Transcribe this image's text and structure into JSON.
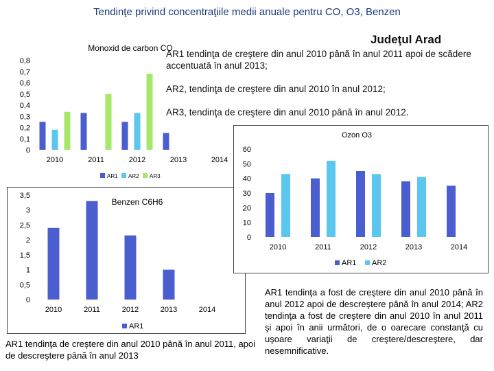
{
  "page": {
    "title": "Tendinţe privind concentraţiile medii anuale pentru CO, O3, Benzen",
    "region": "Judeţul Arad",
    "co_notes": [
      "AR1 tendinţa de creştere din anul 2010 până în anul 2011 apoi de scădere accentuată în anul 2013;",
      "AR2, tendinţa de creştere din anul 2010 în anul 2012;",
      "AR3, tendinţa de creştere din anul 2010 până în anul 2012."
    ],
    "benzen_note": "AR1 tendinţa de creştere din anul 2010 până în anul 2011, apoi de descreştere până în anul 2013",
    "ozon_note": "AR1 tendinţa a fost de creştere din anul 2010 până în anul 2012 apoi de descreştere până în anul 2014; AR2 tendinţa a fost de creştere din anul 2010 în anul 2011 şi apoi în anii următori, de o oarecare constanţă cu uşoare variaţii de creştere/descreştere, dar nesemnificative."
  },
  "colors": {
    "AR1": "#4a5ed0",
    "AR2": "#5bc6ee",
    "AR3": "#a6e86a"
  },
  "chart_data": [
    {
      "id": "co",
      "type": "bar",
      "title": "Monoxid de carbon CO",
      "categories": [
        "2010",
        "2011",
        "2012",
        "2013",
        "2014"
      ],
      "series": [
        {
          "name": "AR1",
          "values": [
            0.25,
            0.33,
            0.25,
            0.15,
            null
          ]
        },
        {
          "name": "AR2",
          "values": [
            0.18,
            null,
            0.33,
            null,
            null
          ]
        },
        {
          "name": "AR3",
          "values": [
            0.34,
            0.5,
            0.68,
            null,
            null
          ]
        }
      ],
      "ylim": [
        0,
        0.8
      ],
      "yticks": [
        "0",
        "0,1",
        "0,2",
        "0,3",
        "0,4",
        "0,5",
        "0,6",
        "0,7",
        "0,8"
      ],
      "legend": [
        "AR1",
        "AR2",
        "AR3"
      ]
    },
    {
      "id": "benzen",
      "type": "bar",
      "title": "Benzen C6H6",
      "categories": [
        "2010",
        "2011",
        "2012",
        "2013",
        "2014"
      ],
      "series": [
        {
          "name": "AR1",
          "values": [
            2.4,
            3.3,
            2.15,
            1.0,
            null
          ]
        }
      ],
      "ylim": [
        0,
        3.5
      ],
      "yticks": [
        "0",
        "0,5",
        "1",
        "1,5",
        "2",
        "2,5",
        "3",
        "3,5"
      ],
      "legend": [
        "AR1"
      ]
    },
    {
      "id": "ozon",
      "type": "bar",
      "title": "Ozon O3",
      "categories": [
        "2010",
        "2011",
        "2012",
        "2013",
        "2014"
      ],
      "series": [
        {
          "name": "AR1",
          "values": [
            30,
            40,
            45,
            38,
            35
          ]
        },
        {
          "name": "AR2",
          "values": [
            43,
            52,
            43,
            41,
            null
          ]
        }
      ],
      "ylim": [
        0,
        60
      ],
      "yticks": [
        "0",
        "10",
        "20",
        "30",
        "40",
        "50",
        "60"
      ],
      "legend": [
        "AR1",
        "AR2"
      ]
    }
  ]
}
